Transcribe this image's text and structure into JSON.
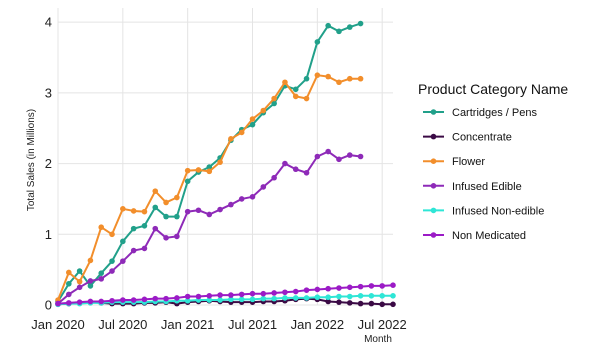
{
  "chart_data": {
    "type": "line",
    "xlabel": "Month",
    "ylabel": "Total Sales (in Millions)",
    "legend_title": "Product Category Name",
    "legend_position": "right",
    "grid": true,
    "xlim": [
      "2020-01",
      "2022-08"
    ],
    "ylim": [
      0,
      4.2
    ],
    "x_ticks": [
      "Jan 2020",
      "Jul 2020",
      "Jan 2021",
      "Jul 2021",
      "Jan 2022",
      "Jul 2022"
    ],
    "x_tick_dates": [
      "2020-01",
      "2020-07",
      "2021-01",
      "2021-07",
      "2022-01",
      "2022-07"
    ],
    "y_ticks": [
      0,
      1,
      2,
      3,
      4
    ],
    "x": [
      "2020-01",
      "2020-02",
      "2020-03",
      "2020-04",
      "2020-05",
      "2020-06",
      "2020-07",
      "2020-08",
      "2020-09",
      "2020-10",
      "2020-11",
      "2020-12",
      "2021-01",
      "2021-02",
      "2021-03",
      "2021-04",
      "2021-05",
      "2021-06",
      "2021-07",
      "2021-08",
      "2021-09",
      "2021-10",
      "2021-11",
      "2021-12",
      "2022-01",
      "2022-02",
      "2022-03",
      "2022-04",
      "2022-05",
      "2022-06",
      "2022-07",
      "2022-08"
    ],
    "series": [
      {
        "name": "Cartridges / Pens",
        "color": "#21a08a",
        "values": [
          0.05,
          0.3,
          0.48,
          0.27,
          0.45,
          0.62,
          0.9,
          1.08,
          1.12,
          1.38,
          1.25,
          1.25,
          1.75,
          1.88,
          1.95,
          2.08,
          2.33,
          2.48,
          2.55,
          2.72,
          2.85,
          3.1,
          3.05,
          3.2,
          3.72,
          3.95,
          3.87,
          3.93,
          3.98,
          null,
          null,
          null
        ]
      },
      {
        "name": "Concentrate",
        "color": "#3b0a45",
        "values": [
          0.01,
          0.02,
          0.03,
          0.04,
          0.03,
          0.02,
          0.02,
          0.02,
          0.03,
          0.03,
          0.04,
          0.02,
          0.04,
          0.05,
          0.06,
          0.05,
          0.04,
          0.04,
          0.04,
          0.05,
          0.05,
          0.06,
          0.08,
          0.09,
          0.08,
          0.05,
          0.04,
          0.03,
          0.02,
          0.02,
          0.01,
          0.01
        ]
      },
      {
        "name": "Flower",
        "color": "#f28e2b",
        "values": [
          0.07,
          0.46,
          0.33,
          0.63,
          1.1,
          1.0,
          1.36,
          1.33,
          1.32,
          1.61,
          1.45,
          1.52,
          1.9,
          1.91,
          1.89,
          2.02,
          2.35,
          2.44,
          2.63,
          2.75,
          2.92,
          3.15,
          2.95,
          2.92,
          3.25,
          3.23,
          3.15,
          3.2,
          3.2,
          null,
          null,
          null
        ]
      },
      {
        "name": "Infused Edible",
        "color": "#8e2ab8",
        "values": [
          0.02,
          0.15,
          0.25,
          0.34,
          0.37,
          0.48,
          0.62,
          0.77,
          0.8,
          1.08,
          0.95,
          0.97,
          1.32,
          1.34,
          1.28,
          1.35,
          1.42,
          1.5,
          1.53,
          1.67,
          1.8,
          2.0,
          1.92,
          1.87,
          2.1,
          2.17,
          2.06,
          2.12,
          2.1,
          null,
          null,
          null
        ]
      },
      {
        "name": "Infused Non-edible",
        "color": "#2ee6d6",
        "values": [
          0.01,
          0.02,
          0.02,
          0.03,
          0.03,
          0.04,
          0.04,
          0.04,
          0.04,
          0.05,
          0.05,
          0.06,
          0.06,
          0.07,
          0.07,
          0.07,
          0.08,
          0.08,
          0.08,
          0.09,
          0.09,
          0.1,
          0.1,
          0.1,
          0.11,
          0.11,
          0.12,
          0.12,
          0.13,
          0.13,
          0.13,
          0.13
        ]
      },
      {
        "name": "Non Medicated",
        "color": "#9b1bc6",
        "values": [
          0.02,
          0.03,
          0.04,
          0.05,
          0.05,
          0.06,
          0.07,
          0.07,
          0.08,
          0.09,
          0.09,
          0.1,
          0.12,
          0.12,
          0.13,
          0.14,
          0.14,
          0.15,
          0.16,
          0.16,
          0.17,
          0.18,
          0.19,
          0.21,
          0.22,
          0.23,
          0.24,
          0.25,
          0.26,
          0.27,
          0.27,
          0.28
        ]
      }
    ]
  }
}
